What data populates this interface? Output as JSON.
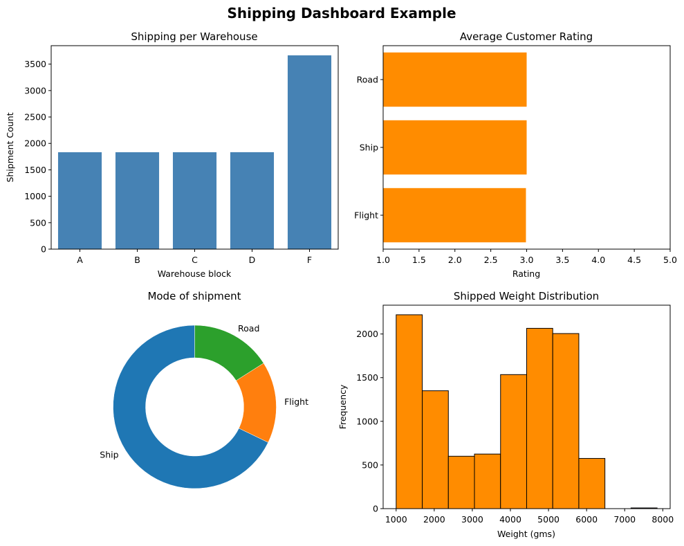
{
  "suptitle": "Shipping Dashboard Example",
  "colors": {
    "bar_blue": "#4682b4",
    "orange": "#ff8c00",
    "pie_blue": "#1f77b4",
    "pie_orange": "#ff7f0e",
    "pie_green": "#2ca02c",
    "edge": "#000000"
  },
  "chart_data": [
    {
      "type": "bar",
      "title": "Shipping per Warehouse",
      "xlabel": "Warehouse block",
      "ylabel": "Shipment Count",
      "categories": [
        "A",
        "B",
        "C",
        "D",
        "F"
      ],
      "values": [
        1833,
        1833,
        1833,
        1834,
        3666
      ],
      "ylim": [
        0,
        3849
      ],
      "yticks": [
        0,
        500,
        1000,
        1500,
        2000,
        2500,
        3000,
        3500
      ],
      "color": "#4682b4",
      "grid": false
    },
    {
      "type": "bar",
      "orientation": "horizontal",
      "title": "Average Customer Rating",
      "xlabel": "Rating",
      "ylabel": "",
      "categories": [
        "Flight",
        "Ship",
        "Road"
      ],
      "values": [
        2.99,
        3.0,
        3.0
      ],
      "xlim": [
        1.0,
        5.0
      ],
      "xticks": [
        "1.0",
        "1.5",
        "2.0",
        "2.5",
        "3.0",
        "3.5",
        "4.0",
        "4.5",
        "5.0"
      ],
      "color": "#ff8c00",
      "grid": false
    },
    {
      "type": "pie",
      "donut": true,
      "title": "Mode of shipment",
      "labels": [
        "Ship",
        "Flight",
        "Road"
      ],
      "values": [
        7462,
        1777,
        1760
      ],
      "colors": [
        "#1f77b4",
        "#ff7f0e",
        "#2ca02c"
      ],
      "start_angle": 90,
      "direction": "counterclockwise"
    },
    {
      "type": "histogram",
      "title": "Shipped Weight Distribution",
      "xlabel": "Weight (gms)",
      "ylabel": "Frequency",
      "bin_edges": [
        1001,
        1686,
        2371,
        3056,
        3741,
        4426,
        5111,
        5796,
        6481,
        7166,
        7851
      ],
      "counts": [
        2220,
        1350,
        600,
        625,
        1535,
        2065,
        2005,
        575,
        0,
        8
      ],
      "xlim": [
        659,
        8194
      ],
      "ylim": [
        0,
        2330
      ],
      "xticks": [
        1000,
        2000,
        3000,
        4000,
        5000,
        6000,
        7000,
        8000
      ],
      "yticks": [
        0,
        500,
        1000,
        1500,
        2000
      ],
      "color": "#ff8c00",
      "edgecolor": "#000000",
      "grid": false
    }
  ]
}
